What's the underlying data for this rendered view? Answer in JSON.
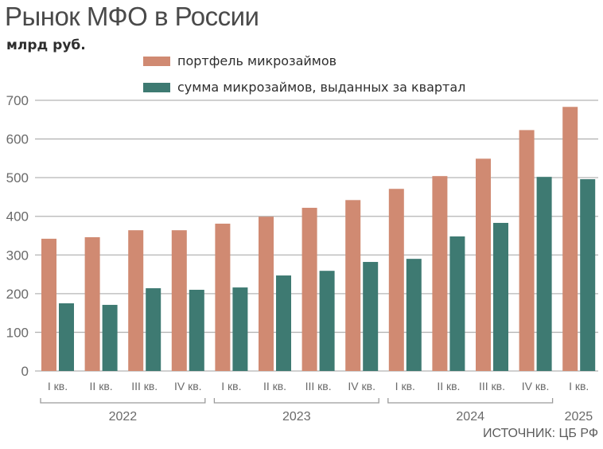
{
  "header": {
    "title": "Рынок МФО в России",
    "unit": "млрд руб."
  },
  "legend": [
    {
      "label": "портфель микрозаймов",
      "color": "#d08a72"
    },
    {
      "label": "сумма микрозаймов, выданных за квартал",
      "color": "#3e7a72"
    }
  ],
  "footer": {
    "source": "ИСТОЧНИК: ЦБ РФ"
  },
  "chart_data": {
    "type": "bar",
    "title": "Рынок МФО в России",
    "ylabel": "млрд руб.",
    "xlabel": "",
    "ylim": [
      0,
      700
    ],
    "yticks": [
      0,
      100,
      200,
      300,
      400,
      500,
      600,
      700
    ],
    "grid": true,
    "legend_position": "top",
    "categories": [
      "I кв.",
      "II кв.",
      "III кв.",
      "IV кв.",
      "I кв.",
      "II кв.",
      "III кв.",
      "IV кв.",
      "I кв.",
      "II кв.",
      "III кв.",
      "IV кв.",
      "I кв."
    ],
    "year_groups": [
      {
        "label": "2022",
        "start": 0,
        "end": 3
      },
      {
        "label": "2023",
        "start": 4,
        "end": 7
      },
      {
        "label": "2024",
        "start": 8,
        "end": 11
      },
      {
        "label": "2025",
        "start": 12,
        "end": 12
      }
    ],
    "series": [
      {
        "name": "портфель микрозаймов",
        "color": "#d08a72",
        "values": [
          342,
          346,
          364,
          364,
          381,
          399,
          422,
          442,
          471,
          504,
          549,
          623,
          683
        ]
      },
      {
        "name": "сумма микрозаймов, выданных за квартал",
        "color": "#3e7a72",
        "values": [
          175,
          171,
          214,
          210,
          216,
          247,
          259,
          282,
          290,
          348,
          383,
          502,
          496
        ]
      }
    ],
    "source": "ИСТОЧНИК: ЦБ РФ"
  }
}
